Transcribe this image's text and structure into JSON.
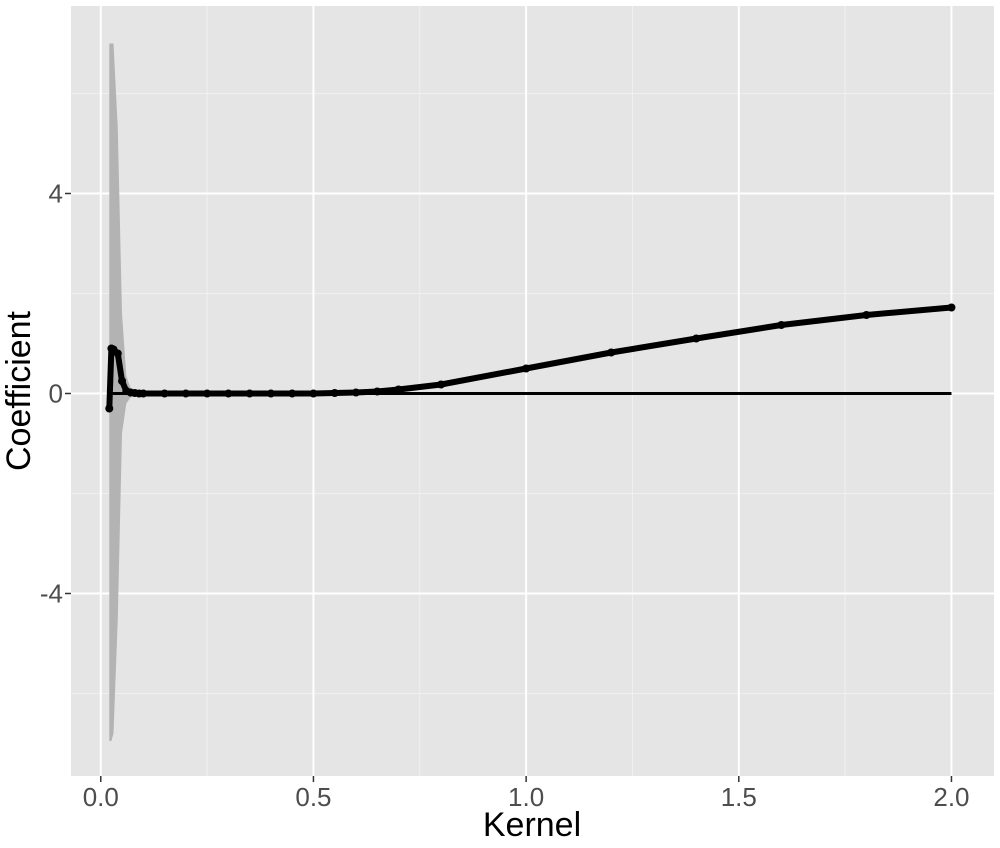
{
  "chart_data": {
    "type": "line",
    "xlabel": "Kernel",
    "ylabel": "Coefficient",
    "xlim": [
      -0.07,
      2.1
    ],
    "ylim": [
      -7.65,
      7.75
    ],
    "x_ticks": [
      0.0,
      0.5,
      1.0,
      1.5,
      2.0
    ],
    "x_tick_labels": [
      "0.0",
      "0.5",
      "1.0",
      "1.5",
      "2.0"
    ],
    "y_ticks": [
      -4,
      0,
      4
    ],
    "y_tick_labels": [
      "-4",
      "0",
      "4"
    ],
    "grid": true,
    "reference_line": {
      "y": 0,
      "x_range": [
        0.02,
        2.0
      ]
    },
    "series": [
      {
        "x": [
          0.02,
          0.025,
          0.03,
          0.04,
          0.05,
          0.06,
          0.07,
          0.08,
          0.09,
          0.1,
          0.15,
          0.2,
          0.25,
          0.3,
          0.35,
          0.4,
          0.45,
          0.5,
          0.55,
          0.6,
          0.65,
          0.7,
          0.8,
          1.0,
          1.2,
          1.4,
          1.6,
          1.8,
          2.0
        ],
        "values": [
          -0.3,
          0.9,
          0.88,
          0.8,
          0.25,
          0.05,
          0.02,
          0.01,
          0.0,
          0.0,
          0.0,
          0.0,
          0.0,
          0.0,
          0.0,
          0.0,
          0.0,
          0.0,
          0.01,
          0.02,
          0.04,
          0.08,
          0.18,
          0.5,
          0.82,
          1.1,
          1.37,
          1.57,
          1.72
        ],
        "ci_lower": [
          -6.95,
          -6.95,
          -6.8,
          -4.5,
          -0.8,
          -0.2,
          -0.08,
          -0.04,
          -0.02,
          -0.01,
          -0.01,
          -0.01,
          -0.01,
          -0.01,
          -0.01,
          -0.01,
          -0.01,
          -0.01,
          0.0,
          0.0,
          0.01,
          0.04,
          0.13,
          0.45,
          0.77,
          1.05,
          1.32,
          1.52,
          1.67
        ],
        "ci_upper": [
          7.0,
          7.0,
          7.0,
          5.3,
          1.6,
          0.35,
          0.12,
          0.06,
          0.03,
          0.02,
          0.02,
          0.02,
          0.02,
          0.02,
          0.02,
          0.02,
          0.02,
          0.02,
          0.03,
          0.04,
          0.07,
          0.12,
          0.23,
          0.55,
          0.87,
          1.15,
          1.42,
          1.62,
          1.77
        ]
      }
    ],
    "colors": {
      "panel": "#e5e5e5",
      "grid_major": "#ffffff",
      "grid_minor": "#f0f0f0",
      "ribbon": "#b3b3b3",
      "line": "#000000",
      "tick_text": "#4d4d4d"
    }
  }
}
